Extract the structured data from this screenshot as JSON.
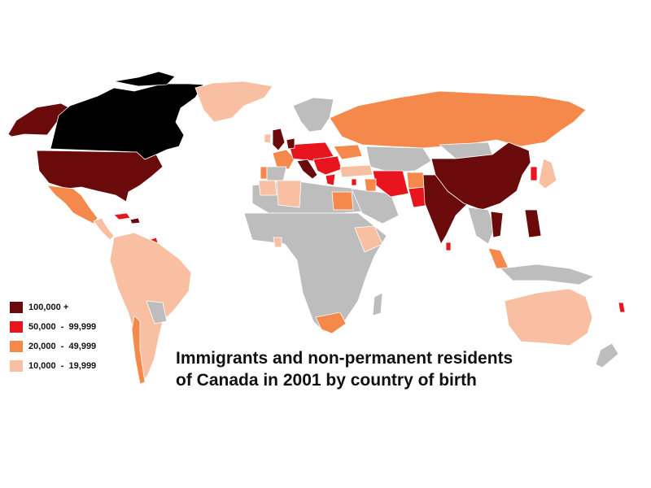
{
  "title": {
    "line1": "Immigrants and non-permanent residents",
    "line2": "of Canada in 2001 by country of birth"
  },
  "legend": [
    {
      "label": "100,000 +",
      "color": "#6b0a0a"
    },
    {
      "label": "50,000  -  99,999",
      "color": "#e8141e"
    },
    {
      "label": "20,000  -  49,999",
      "color": "#f4894b"
    },
    {
      "label": "10,000  -  19,999",
      "color": "#f9bfa3"
    }
  ],
  "colors": {
    "canada": "#000000",
    "no_data_or_below": "#bdbdbd",
    "ocean": "#ffffff",
    "border": "#ffffff"
  }
}
